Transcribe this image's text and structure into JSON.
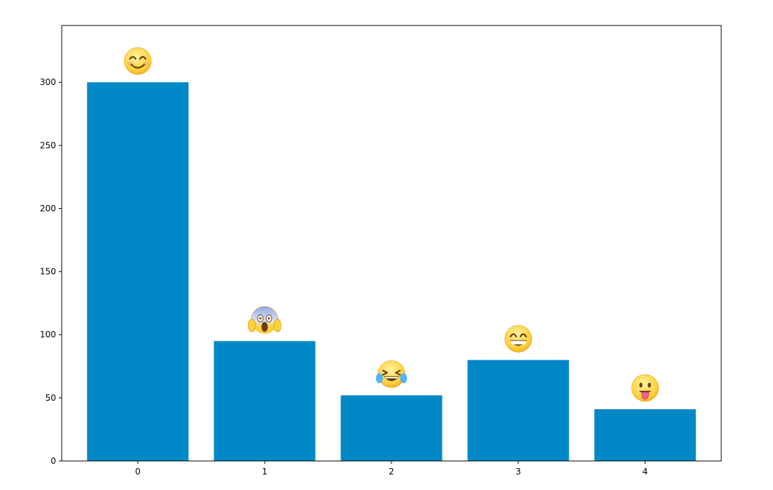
{
  "chart_data": {
    "type": "bar",
    "categories": [
      "0",
      "1",
      "2",
      "3",
      "4"
    ],
    "values": [
      300,
      95,
      52,
      80,
      41
    ],
    "annotations": [
      {
        "category": "0",
        "emoji": "smiling-face-with-smiling-eyes"
      },
      {
        "category": "1",
        "emoji": "face-screaming-in-fear"
      },
      {
        "category": "2",
        "emoji": "face-with-tears-of-joy"
      },
      {
        "category": "3",
        "emoji": "beaming-face-with-smiling-eyes"
      },
      {
        "category": "4",
        "emoji": "face-with-tongue"
      }
    ],
    "yticks": [
      0,
      50,
      100,
      150,
      200,
      250,
      300
    ],
    "ylim": [
      0,
      345
    ],
    "bar_color": "#0288c7",
    "grid": false,
    "title": "",
    "xlabel": "",
    "ylabel": ""
  }
}
